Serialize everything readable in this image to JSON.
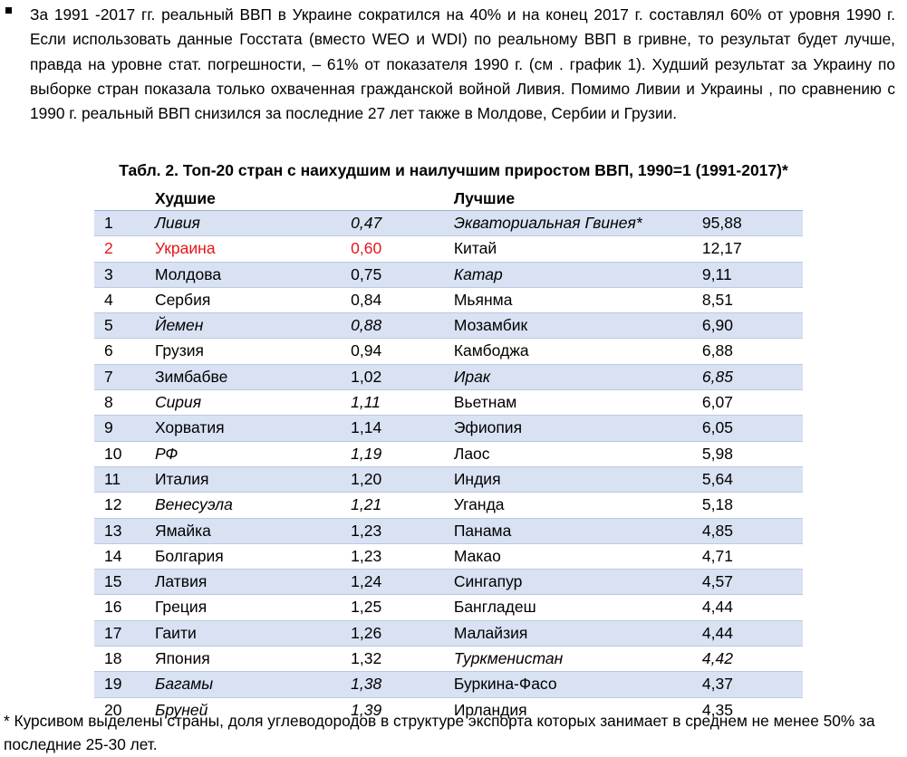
{
  "paragraph": "За 1991 -2017 гг. реальный ВВП в Украине сократился на 40% и на конец 2017 г. составлял 60% от уровня 1990 г. Если использовать данные Госстата (вместо WEO  и WDI) по реальному ВВП в гривне, то результат будет лучше, правда на уровне стат. погрешности, – 61% от показателя 1990 г. (см . график 1). Худший результат за Украину по выборке стран показала только охваченная гражданской войной Ливия. Помимо Ливии и Украины , по сравнению с 1990 г. реальный ВВП снизился за последние 27 лет также в Молдове, Сербии и Грузии.",
  "table": {
    "caption": "Табл. 2. Топ-20 стран с наихудшим и наилучшим приростом ВВП, 1990=1 (1991-2017)*",
    "header_worst": "Худшие",
    "header_best": "Лучшие",
    "rows": [
      {
        "n": "1",
        "worst": "Ливия",
        "worst_val": "0,47",
        "worst_italic": true,
        "best": "Экваториальная Гвинея*",
        "best_val": "95,88",
        "best_italic": true,
        "best_val_italic": false,
        "red": false
      },
      {
        "n": "2",
        "worst": "Украина",
        "worst_val": "0,60",
        "worst_italic": false,
        "best": "Китай",
        "best_val": "12,17",
        "best_italic": false,
        "best_val_italic": false,
        "red": true
      },
      {
        "n": "3",
        "worst": "Молдова",
        "worst_val": "0,75",
        "worst_italic": false,
        "best": "Катар",
        "best_val": "9,11",
        "best_italic": true,
        "best_val_italic": false,
        "red": false
      },
      {
        "n": "4",
        "worst": "Сербия",
        "worst_val": "0,84",
        "worst_italic": false,
        "best": "Мьянма",
        "best_val": "8,51",
        "best_italic": false,
        "best_val_italic": false,
        "red": false
      },
      {
        "n": "5",
        "worst": "Йемен",
        "worst_val": "0,88",
        "worst_italic": true,
        "best": "Мозамбик",
        "best_val": "6,90",
        "best_italic": false,
        "best_val_italic": false,
        "red": false
      },
      {
        "n": "6",
        "worst": "Грузия",
        "worst_val": "0,94",
        "worst_italic": false,
        "best": "Камбоджа",
        "best_val": "6,88",
        "best_italic": false,
        "best_val_italic": false,
        "red": false
      },
      {
        "n": "7",
        "worst": "Зимбабве",
        "worst_val": "1,02",
        "worst_italic": false,
        "best": "Ирак",
        "best_val": "6,85",
        "best_italic": true,
        "best_val_italic": true,
        "red": false
      },
      {
        "n": "8",
        "worst": "Сирия",
        "worst_val": "1,11",
        "worst_italic": true,
        "best": "Вьетнам",
        "best_val": "6,07",
        "best_italic": false,
        "best_val_italic": false,
        "red": false
      },
      {
        "n": "9",
        "worst": "Хорватия",
        "worst_val": "1,14",
        "worst_italic": false,
        "best": "Эфиопия",
        "best_val": "6,05",
        "best_italic": false,
        "best_val_italic": false,
        "red": false
      },
      {
        "n": "10",
        "worst": "РФ",
        "worst_val": "1,19",
        "worst_italic": true,
        "best": "Лаос",
        "best_val": "5,98",
        "best_italic": false,
        "best_val_italic": false,
        "red": false
      },
      {
        "n": "11",
        "worst": "Италия",
        "worst_val": "1,20",
        "worst_italic": false,
        "best": "Индия",
        "best_val": "5,64",
        "best_italic": false,
        "best_val_italic": false,
        "red": false
      },
      {
        "n": "12",
        "worst": "Венесуэла",
        "worst_val": "1,21",
        "worst_italic": true,
        "best": "Уганда",
        "best_val": "5,18",
        "best_italic": false,
        "best_val_italic": false,
        "red": false
      },
      {
        "n": "13",
        "worst": "Ямайка",
        "worst_val": "1,23",
        "worst_italic": false,
        "best": "Панама",
        "best_val": "4,85",
        "best_italic": false,
        "best_val_italic": false,
        "red": false
      },
      {
        "n": "14",
        "worst": "Болгария",
        "worst_val": "1,23",
        "worst_italic": false,
        "best": "Макао",
        "best_val": "4,71",
        "best_italic": false,
        "best_val_italic": false,
        "red": false
      },
      {
        "n": "15",
        "worst": "Латвия",
        "worst_val": "1,24",
        "worst_italic": false,
        "best": "Сингапур",
        "best_val": "4,57",
        "best_italic": false,
        "best_val_italic": false,
        "red": false
      },
      {
        "n": "16",
        "worst": "Греция",
        "worst_val": "1,25",
        "worst_italic": false,
        "best": "Бангладеш",
        "best_val": "4,44",
        "best_italic": false,
        "best_val_italic": false,
        "red": false
      },
      {
        "n": "17",
        "worst": "Гаити",
        "worst_val": "1,26",
        "worst_italic": false,
        "best": "Малайзия",
        "best_val": "4,44",
        "best_italic": false,
        "best_val_italic": false,
        "red": false
      },
      {
        "n": "18",
        "worst": "Япония",
        "worst_val": "1,32",
        "worst_italic": false,
        "best": "Туркменистан",
        "best_val": "4,42",
        "best_italic": true,
        "best_val_italic": true,
        "red": false
      },
      {
        "n": "19",
        "worst": "Багамы",
        "worst_val": "1,38",
        "worst_italic": true,
        "best": "Буркина-Фасо",
        "best_val": "4,37",
        "best_italic": false,
        "best_val_italic": false,
        "red": false
      },
      {
        "n": "20",
        "worst": "Бруней",
        "worst_val": "1,39",
        "worst_italic": true,
        "best": "Ирландия",
        "best_val": "4,35",
        "best_italic": false,
        "best_val_italic": false,
        "red": false
      }
    ]
  },
  "footnote": "* Курсивом выделены страны, доля углеводородов в структуре экспорта которых занимает в среднем не менее 50% за последние 25-30 лет.",
  "colors": {
    "row_shade": "#d9e2f3",
    "highlight_red": "#e8141b"
  }
}
